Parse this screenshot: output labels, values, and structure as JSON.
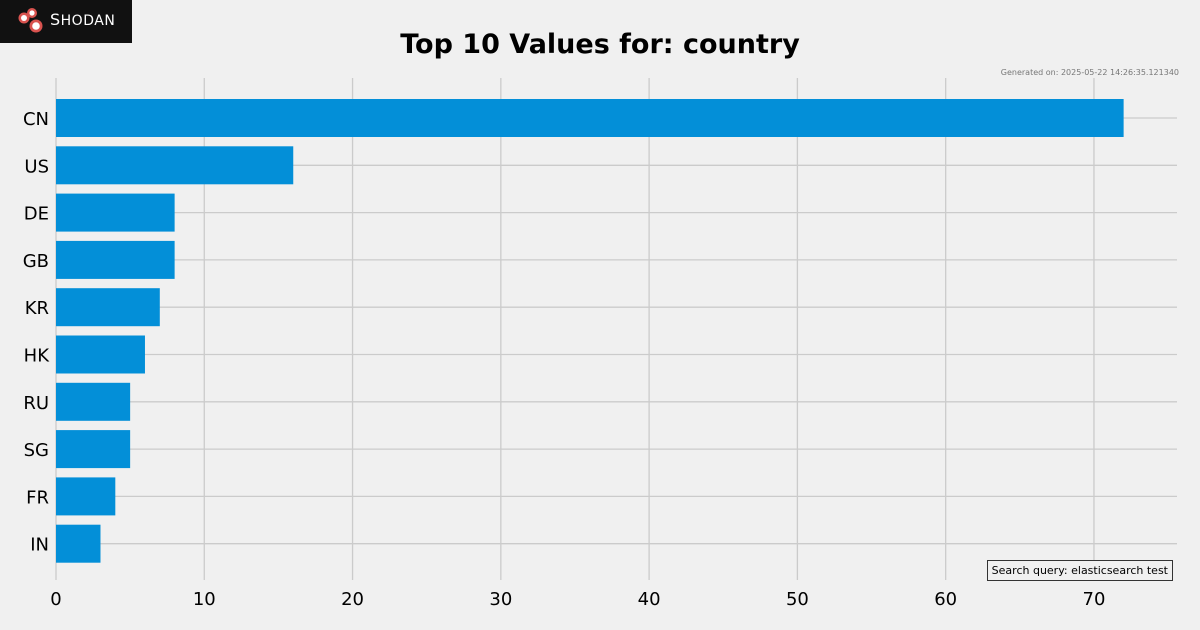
{
  "logo": {
    "text": "Shodan"
  },
  "generated": "Generated on: 2025-05-22 14:26:35.121340",
  "search_query": "Search query: elasticsearch test",
  "colors": {
    "bar": "#038fd8",
    "grid": "#cbcbcb",
    "background": "#f0f0f0",
    "logo_bg": "#111111",
    "logo_accent": "#d9534f"
  },
  "chart_data": {
    "type": "bar",
    "orientation": "horizontal",
    "title": "Top 10 Values for: country",
    "xlabel": "",
    "ylabel": "",
    "categories": [
      "CN",
      "US",
      "DE",
      "GB",
      "KR",
      "HK",
      "RU",
      "SG",
      "FR",
      "IN"
    ],
    "values": [
      72,
      16,
      8,
      8,
      7,
      6,
      5,
      5,
      4,
      3
    ],
    "xlim": [
      0,
      75.6
    ],
    "xticks": [
      0,
      10,
      20,
      30,
      40,
      50,
      60,
      70
    ],
    "grid": true
  }
}
